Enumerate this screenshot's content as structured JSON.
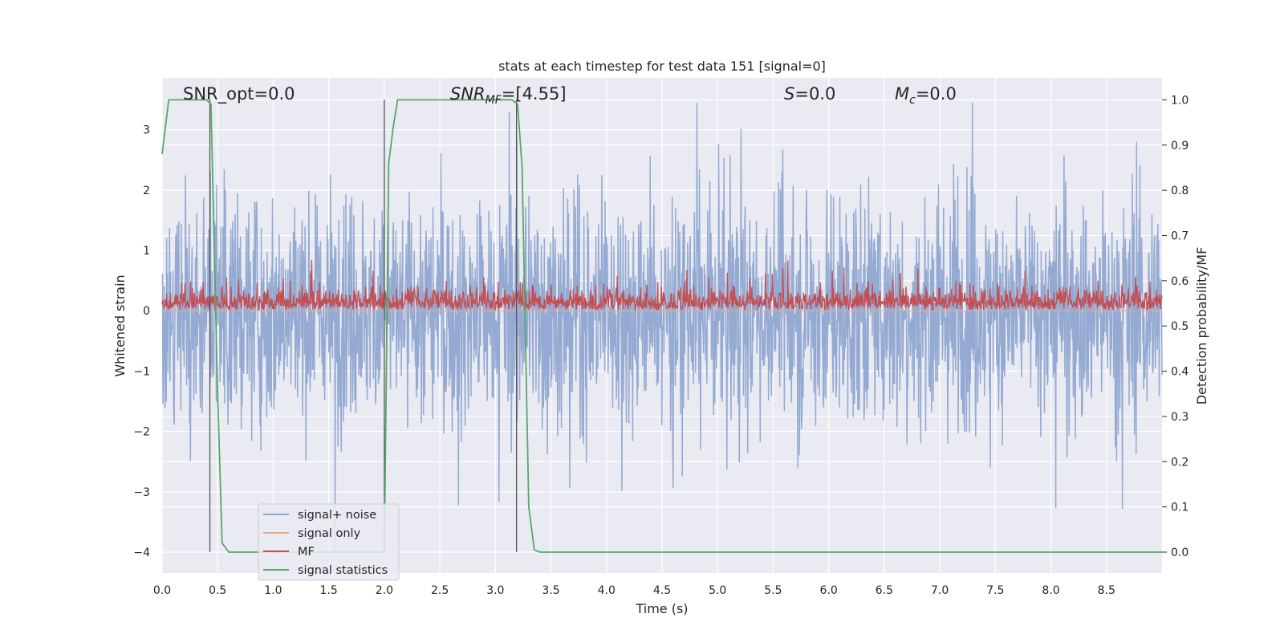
{
  "chart_data": {
    "type": "line",
    "title": "stats at each timestep for test data 151 [signal=0]",
    "xlabel": "Time (s)",
    "ylabel": "Whitened strain",
    "y2label": "Detection probability/MF",
    "xlim": [
      0.0,
      9.0
    ],
    "ylim": [
      -4.4,
      3.7
    ],
    "y2lim": [
      -0.05,
      1.05
    ],
    "xticks": [
      "0.0",
      "0.5",
      "1.0",
      "1.5",
      "2.0",
      "2.5",
      "3.0",
      "3.5",
      "4.0",
      "4.5",
      "5.0",
      "5.5",
      "6.0",
      "6.5",
      "7.0",
      "7.5",
      "8.0",
      "8.5"
    ],
    "yticks": [
      "3",
      "2",
      "1",
      "0",
      "−1",
      "−2",
      "−3",
      "−4"
    ],
    "y2ticks": [
      "1.0",
      "0.9",
      "0.8",
      "0.7",
      "0.6",
      "0.5",
      "0.4",
      "0.3",
      "0.2",
      "0.1",
      "0.0"
    ],
    "grid": true,
    "legend_position": "lower-left",
    "annotations": {
      "snr_opt": "SNR_opt=0.0",
      "snr_mf_main": "SNR",
      "snr_mf_sub": "MF",
      "snr_mf_value": "=[4.55]",
      "s_main": "S",
      "s_value": "=0.0",
      "mc_main": "M",
      "mc_sub": "c",
      "mc_value": "=0.0"
    },
    "series": [
      {
        "name": "signal+ noise",
        "color": "#8fa7d0",
        "axis": "left",
        "description_values": {
          "mean": 0.0,
          "typical_range": [
            -2.2,
            2.2
          ],
          "extremes": [
            -4.0,
            3.45
          ]
        }
      },
      {
        "name": "signal only",
        "color": "#e8a890",
        "axis": "left",
        "values_constant": 0.0
      },
      {
        "name": "MF",
        "color": "#c44e52",
        "axis": "left",
        "description_values": {
          "baseline": 0.0,
          "typical_range": [
            0.0,
            0.45
          ],
          "extremes": [
            0.0,
            0.95
          ]
        }
      },
      {
        "name": "signal statistics",
        "color": "#55a868",
        "axis": "right",
        "x": [
          0.0,
          0.06,
          0.4,
          0.44,
          0.5,
          0.54,
          0.6,
          1.95,
          2.0,
          2.04,
          2.08,
          2.12,
          3.15,
          3.2,
          3.24,
          3.3,
          3.35,
          3.4,
          9.0
        ],
        "y": [
          0.88,
          1.0,
          1.0,
          0.99,
          0.35,
          0.02,
          0.0,
          0.0,
          0.0,
          0.86,
          0.94,
          1.0,
          1.0,
          0.99,
          0.85,
          0.1,
          0.005,
          0.0,
          0.0
        ]
      }
    ],
    "vertical_markers_x": [
      0.43,
      2.0,
      3.19
    ]
  }
}
